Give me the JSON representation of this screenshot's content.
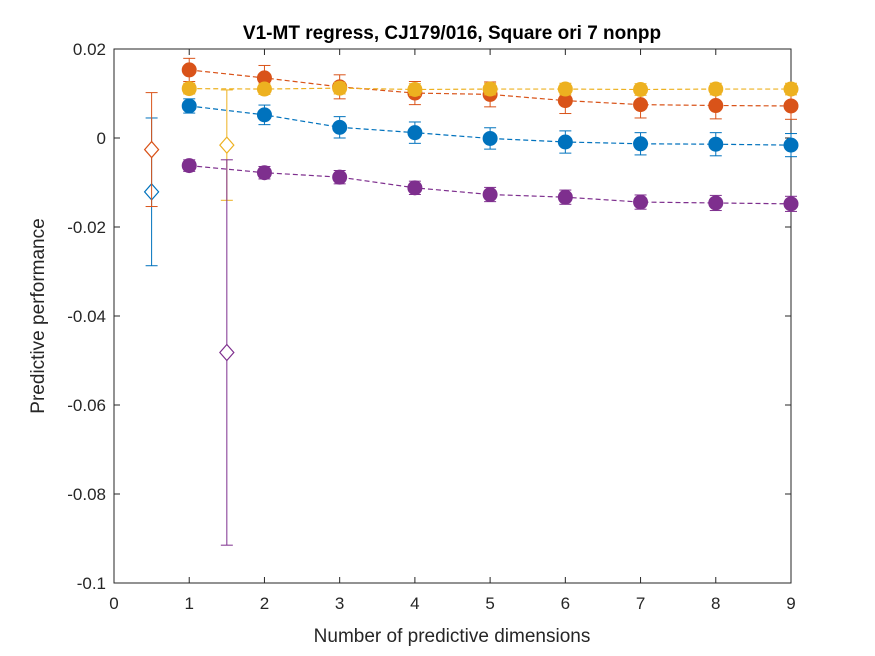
{
  "chart_data": {
    "type": "scatter",
    "title": "V1-MT regress, CJ179/016, Square ori 7 nonpp",
    "xlabel": "Number of predictive dimensions",
    "ylabel": "Predictive performance",
    "xlim": [
      0,
      9
    ],
    "ylim": [
      -0.1,
      0.02
    ],
    "xticks": [
      0,
      1,
      2,
      3,
      4,
      5,
      6,
      7,
      8,
      9
    ],
    "xtick_labels": [
      "0",
      "1",
      "2",
      "3",
      "4",
      "5",
      "6",
      "7",
      "8",
      "9"
    ],
    "yticks": [
      -0.1,
      -0.08,
      -0.06,
      -0.04,
      -0.02,
      0,
      0.02
    ],
    "ytick_labels": [
      "-0.1",
      "-0.08",
      "-0.06",
      "-0.04",
      "-0.02",
      "0",
      "0.02"
    ],
    "grid": false,
    "legend": "none",
    "series": [
      {
        "color": "#0072BD",
        "x": [
          1,
          2,
          3,
          4,
          5,
          6,
          7,
          8,
          9
        ],
        "y": [
          0.0072,
          0.0052,
          0.0024,
          0.0012,
          -0.0001,
          -0.0009,
          -0.0013,
          -0.0014,
          -0.0016
        ],
        "err": [
          0.0016,
          0.0022,
          0.0024,
          0.0024,
          0.0024,
          0.0025,
          0.0025,
          0.0026,
          0.0026
        ],
        "reference": {
          "x": 0.5,
          "y": -0.0121,
          "err": 0.0166
        }
      },
      {
        "color": "#D95319",
        "x": [
          1,
          2,
          3,
          4,
          5,
          6,
          7,
          8,
          9
        ],
        "y": [
          0.0153,
          0.0135,
          0.0115,
          0.0101,
          0.0098,
          0.0084,
          0.0075,
          0.0073,
          0.0072
        ],
        "err": [
          0.0026,
          0.0028,
          0.0027,
          0.0026,
          0.0028,
          0.0029,
          0.003,
          0.003,
          0.003
        ],
        "reference": {
          "x": 0.5,
          "y": -0.0026,
          "err": 0.0128
        }
      },
      {
        "color": "#EDB120",
        "x": [
          1,
          2,
          3,
          4,
          5,
          6,
          7,
          8,
          9
        ],
        "y": [
          0.0111,
          0.011,
          0.0112,
          0.0109,
          0.011,
          0.011,
          0.0109,
          0.011,
          0.011
        ],
        "err": [
          0.0012,
          0.0012,
          0.0013,
          0.0013,
          0.0013,
          0.0013,
          0.0013,
          0.0013,
          0.0013
        ],
        "reference": {
          "x": 1.5,
          "y": -0.0016,
          "err": 0.0124
        }
      },
      {
        "color": "#7E2F8E",
        "x": [
          1,
          2,
          3,
          4,
          5,
          6,
          7,
          8,
          9
        ],
        "y": [
          -0.0062,
          -0.0078,
          -0.0088,
          -0.0112,
          -0.0127,
          -0.0133,
          -0.0144,
          -0.0146,
          -0.0148
        ],
        "err": [
          0.0013,
          0.0014,
          0.0015,
          0.0015,
          0.0016,
          0.0016,
          0.0016,
          0.0017,
          0.0017
        ],
        "reference": {
          "x": 1.5,
          "y": -0.0482,
          "err": 0.0433
        }
      }
    ]
  }
}
